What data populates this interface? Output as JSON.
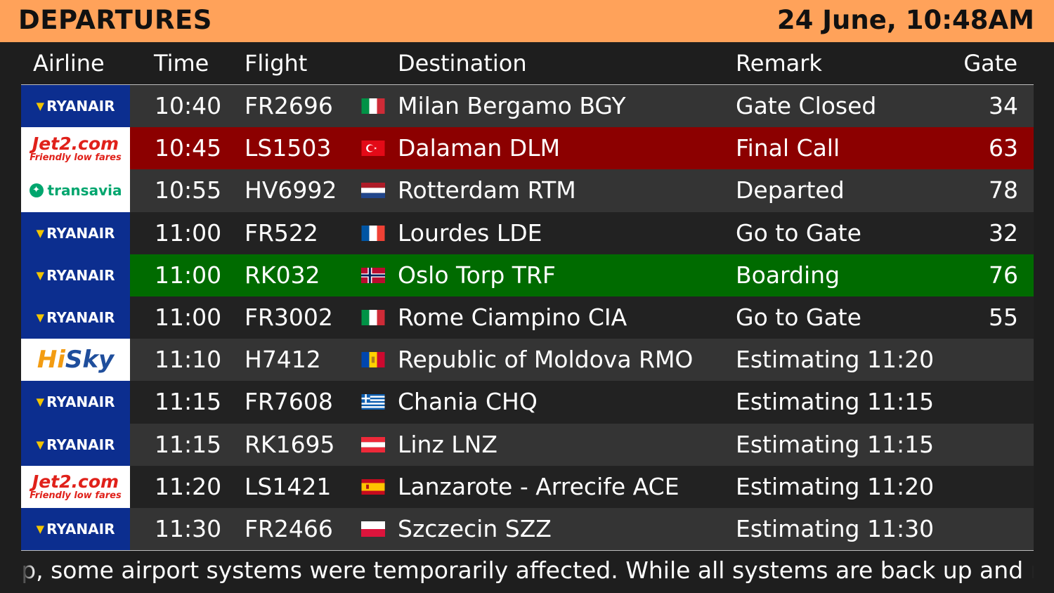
{
  "header": {
    "title": "DEPARTURES",
    "datetime": "24 June, 10:48AM",
    "background_color": "#ffa25a"
  },
  "columns": {
    "airline": "Airline",
    "time": "Time",
    "flight": "Flight",
    "destination": "Destination",
    "remark": "Remark",
    "gate": "Gate"
  },
  "flights": [
    {
      "airline": "Ryanair",
      "logo": "ryanair",
      "logo_text": "RYANAIR",
      "time": "10:40",
      "flight": "FR2696",
      "flag": "italy-flag-icon",
      "destination": "Milan Bergamo BGY",
      "remark": "Gate Closed",
      "gate": "34",
      "highlight": "none"
    },
    {
      "airline": "Jet2.com",
      "logo": "jet2",
      "logo_text": "Jet2.com",
      "logo_subtext": "Friendly low fares",
      "time": "10:45",
      "flight": "LS1503",
      "flag": "turkey-flag-icon",
      "destination": "Dalaman DLM",
      "remark": "Final Call",
      "gate": "63",
      "highlight": "red"
    },
    {
      "airline": "Transavia",
      "logo": "transavia",
      "logo_text": "transavia",
      "time": "10:55",
      "flight": "HV6992",
      "flag": "netherlands-flag-icon",
      "destination": "Rotterdam RTM",
      "remark": "Departed",
      "gate": "78",
      "highlight": "none"
    },
    {
      "airline": "Ryanair",
      "logo": "ryanair",
      "logo_text": "RYANAIR",
      "time": "11:00",
      "flight": "FR522",
      "flag": "france-flag-icon",
      "destination": "Lourdes LDE",
      "remark": "Go to Gate",
      "gate": "32",
      "highlight": "none"
    },
    {
      "airline": "Ryanair",
      "logo": "ryanair",
      "logo_text": "RYANAIR",
      "time": "11:00",
      "flight": "RK032",
      "flag": "norway-flag-icon",
      "destination": "Oslo Torp TRF",
      "remark": "Boarding",
      "gate": "76",
      "highlight": "green"
    },
    {
      "airline": "Ryanair",
      "logo": "ryanair",
      "logo_text": "RYANAIR",
      "time": "11:00",
      "flight": "FR3002",
      "flag": "italy-flag-icon",
      "destination": "Rome Ciampino CIA",
      "remark": "Go to Gate",
      "gate": "55",
      "highlight": "none"
    },
    {
      "airline": "HiSky",
      "logo": "hisky",
      "logo_text_a": "Hi",
      "logo_text_b": "Sky",
      "time": "11:10",
      "flight": "H7412",
      "flag": "moldova-flag-icon",
      "destination": "Republic of Moldova RMO",
      "remark": "Estimating 11:20",
      "gate": "",
      "highlight": "none"
    },
    {
      "airline": "Ryanair",
      "logo": "ryanair",
      "logo_text": "RYANAIR",
      "time": "11:15",
      "flight": "FR7608",
      "flag": "greece-flag-icon",
      "destination": "Chania CHQ",
      "remark": "Estimating 11:15",
      "gate": "",
      "highlight": "none"
    },
    {
      "airline": "Ryanair",
      "logo": "ryanair",
      "logo_text": "RYANAIR",
      "time": "11:15",
      "flight": "RK1695",
      "flag": "austria-flag-icon",
      "destination": "Linz LNZ",
      "remark": "Estimating 11:15",
      "gate": "",
      "highlight": "none"
    },
    {
      "airline": "Jet2.com",
      "logo": "jet2",
      "logo_text": "Jet2.com",
      "logo_subtext": "Friendly low fares",
      "time": "11:20",
      "flight": "LS1421",
      "flag": "spain-flag-icon",
      "destination": "Lanzarote - Arrecife ACE",
      "remark": "Estimating 11:20",
      "gate": "",
      "highlight": "none"
    },
    {
      "airline": "Ryanair",
      "logo": "ryanair",
      "logo_text": "RYANAIR",
      "time": "11:30",
      "flight": "FR2466",
      "flag": "poland-flag-icon",
      "destination": "Szczecin SZZ",
      "remark": "Estimating 11:30",
      "gate": "",
      "highlight": "none"
    }
  ],
  "ticker": {
    "text": "ip, some airport systems were temporarily affected. While all systems are back up and runnir"
  },
  "colors": {
    "row_light": "#343434",
    "row_dark": "#222222",
    "final_call": "#8c0000",
    "boarding": "#006b00",
    "ryanair_blue": "#0c2e8f"
  }
}
